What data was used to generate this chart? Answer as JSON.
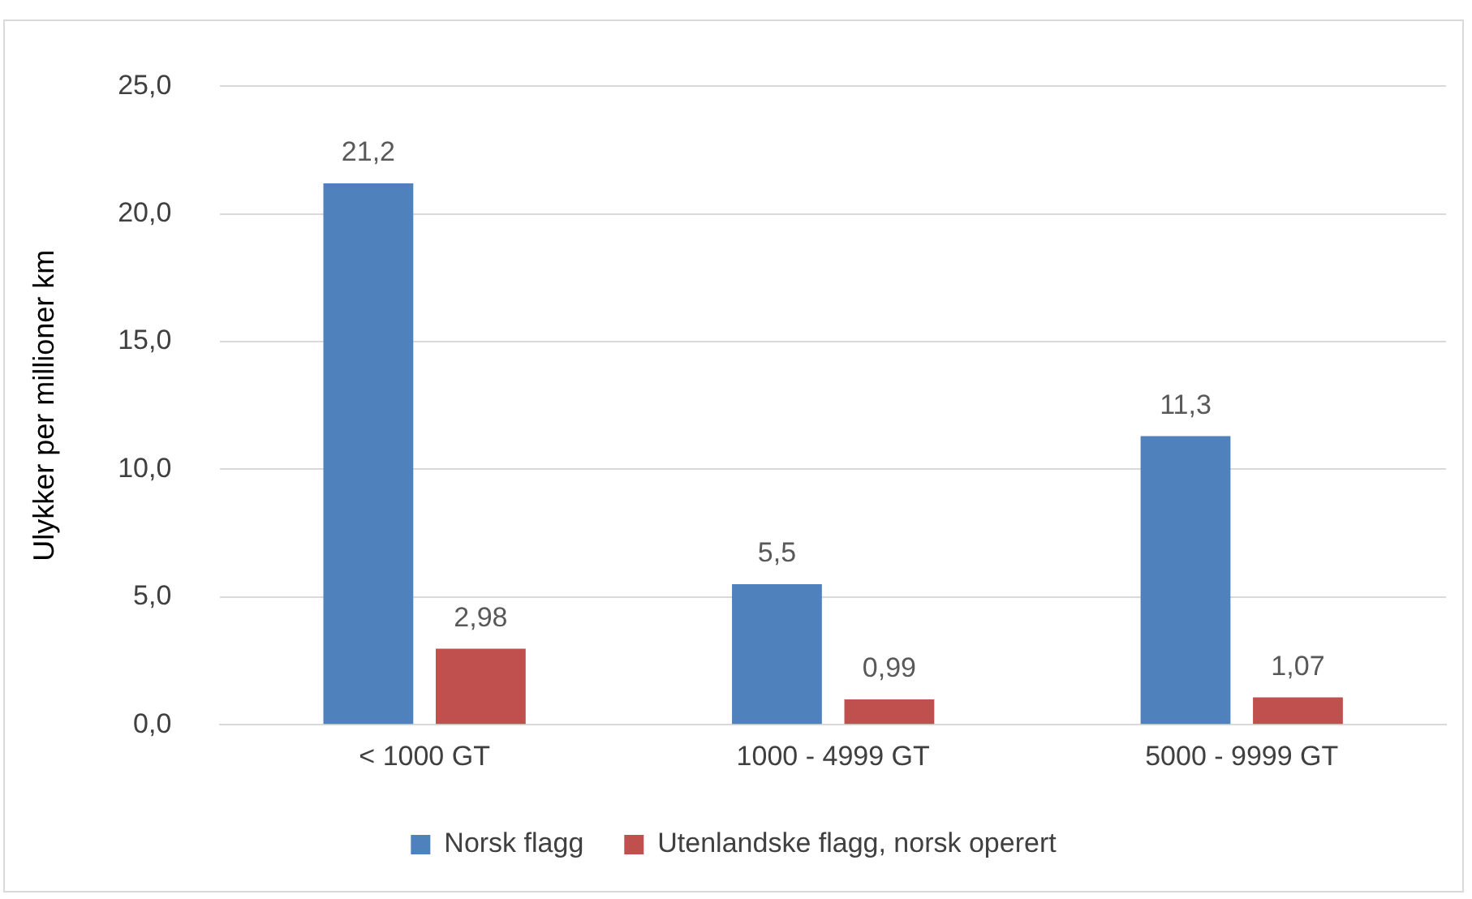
{
  "chart_data": {
    "type": "bar",
    "ylabel": "Ulykker per millioner km",
    "categories": [
      "< 1000 GT",
      "1000 - 4999 GT",
      "5000 - 9999 GT"
    ],
    "series": [
      {
        "name": "Norsk flagg",
        "color": "#4f81bd",
        "values": [
          21.2,
          5.5,
          11.3
        ],
        "value_labels": [
          "21,2",
          "5,5",
          "11,3"
        ]
      },
      {
        "name": "Utenlandske flagg, norsk operert",
        "color": "#c0504d",
        "values": [
          2.98,
          0.99,
          1.07
        ],
        "value_labels": [
          "2,98",
          "0,99",
          "1,07"
        ]
      }
    ],
    "ylim": [
      0,
      25
    ],
    "yticks": [
      {
        "value": 0,
        "label": "0,0"
      },
      {
        "value": 5,
        "label": "5,0"
      },
      {
        "value": 10,
        "label": "10,0"
      },
      {
        "value": 15,
        "label": "15,0"
      },
      {
        "value": 20,
        "label": "20,0"
      },
      {
        "value": 25,
        "label": "25,0"
      }
    ],
    "grid": "y",
    "legend": "bottom"
  }
}
